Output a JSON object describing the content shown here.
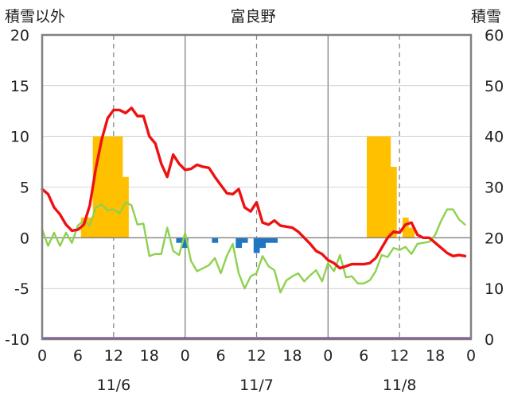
{
  "chart_data": {
    "type": "bar+line",
    "title": "富良野",
    "y_left_label": "積雪以外",
    "y_right_label": "積雪",
    "y_left_range": [
      -10,
      20
    ],
    "y_right_range": [
      0,
      60
    ],
    "y_left_ticks": [
      "20",
      "15",
      "10",
      "5",
      "0",
      "-5",
      "-10"
    ],
    "y_right_ticks": [
      "60",
      "50",
      "40",
      "30",
      "20",
      "10",
      "0"
    ],
    "x_hour_ticks": [
      "0",
      "6",
      "12",
      "18",
      "0",
      "6",
      "12",
      "18",
      "0",
      "6",
      "12",
      "18",
      "0"
    ],
    "x_date_labels": [
      "11/6",
      "11/7",
      "11/8"
    ],
    "grid": "dashed vertical at 12h, solid at midnight",
    "x_unit_hours_total": 72,
    "colors": {
      "red_series": "#ee1111",
      "green_series": "#8fd14f",
      "orange_bars": "#ffc000",
      "blue_bars": "#1f77c4",
      "purple_baseline": "#7030a0",
      "grid": "#808080"
    },
    "orange_bars": {
      "name": "",
      "axis": "left",
      "x_hours": [
        7,
        8,
        9,
        10,
        11,
        12,
        13,
        14,
        55,
        56,
        57,
        58,
        59,
        60,
        61,
        62
      ],
      "values": [
        2,
        2,
        10,
        10,
        10,
        10,
        10,
        6,
        10,
        10,
        10,
        10,
        7,
        0,
        2,
        1
      ]
    },
    "blue_bars": {
      "name": "",
      "axis": "left",
      "x_hours": [
        23,
        24,
        29,
        33,
        34,
        36,
        37,
        38,
        39
      ],
      "values": [
        -0.5,
        -1,
        -0.5,
        -1,
        -0.5,
        -1.5,
        -1,
        -0.5,
        -0.5
      ]
    },
    "red_line": {
      "name": "",
      "axis": "left",
      "x_hours": [
        0,
        1,
        2,
        3,
        4,
        5,
        6,
        7,
        8,
        9,
        10,
        11,
        12,
        13,
        14,
        15,
        16,
        17,
        18,
        19,
        20,
        21,
        22,
        23,
        24,
        25,
        26,
        27,
        28,
        29,
        30,
        31,
        32,
        33,
        34,
        35,
        36,
        37,
        38,
        39,
        40,
        41,
        42,
        43,
        44,
        45,
        46,
        47,
        48,
        49,
        50,
        51,
        52,
        53,
        54,
        55,
        56,
        57,
        58,
        59,
        60,
        61,
        62,
        63,
        64,
        65,
        66,
        67,
        68,
        69,
        70,
        71
      ],
      "values": [
        4.8,
        4.3,
        3,
        2.3,
        1.3,
        0.7,
        0.8,
        1.3,
        3.2,
        6.8,
        9.7,
        11.8,
        12.6,
        12.6,
        12.3,
        12.8,
        12,
        12,
        10,
        9.3,
        7.3,
        6,
        8.2,
        7.3,
        6.7,
        6.8,
        7.2,
        7,
        6.9,
        6,
        5.2,
        4.4,
        4.3,
        4.8,
        3,
        2.6,
        3.5,
        1.5,
        1.3,
        1.7,
        1.2,
        1.1,
        1,
        0.6,
        0,
        -0.6,
        -1.3,
        -1.6,
        -2.2,
        -2.5,
        -3,
        -2.8,
        -2.6,
        -2.6,
        -2.6,
        -2.5,
        -2,
        -1,
        0,
        0.6,
        0.5,
        1.3,
        1.5,
        0.3,
        0,
        0,
        -0.5,
        -1,
        -1.5,
        -1.8,
        -1.7,
        -1.8
      ]
    },
    "green_line": {
      "name": "",
      "axis": "left",
      "x_hours": [
        0,
        1,
        2,
        3,
        4,
        5,
        6,
        7,
        8,
        9,
        10,
        11,
        12,
        13,
        14,
        15,
        16,
        17,
        18,
        19,
        20,
        21,
        22,
        23,
        24,
        25,
        26,
        27,
        28,
        29,
        30,
        31,
        32,
        33,
        34,
        35,
        36,
        37,
        38,
        39,
        40,
        41,
        42,
        43,
        44,
        45,
        46,
        47,
        48,
        49,
        50,
        51,
        52,
        53,
        54,
        55,
        56,
        57,
        58,
        59,
        60,
        61,
        62,
        63,
        64,
        65,
        66,
        67,
        68,
        69,
        70,
        71
      ],
      "values": [
        0.8,
        -0.8,
        0.5,
        -0.8,
        0.5,
        -0.5,
        1.2,
        1.7,
        1.2,
        3,
        3.3,
        2.7,
        2.8,
        2.4,
        3.5,
        3.2,
        1.3,
        1.4,
        -1.8,
        -1.6,
        -1.6,
        1,
        -1.3,
        -1.7,
        0.5,
        -2.3,
        -3.3,
        -3,
        -2.7,
        -2,
        -3.5,
        -1.8,
        -0.6,
        -3.5,
        -5,
        -3.8,
        -3.5,
        -1.8,
        -2.8,
        -3.2,
        -5.4,
        -4.2,
        -3.8,
        -3.5,
        -4.3,
        -3.7,
        -3.2,
        -4.3,
        -2.5,
        -3.3,
        -1.7,
        -3.9,
        -3.8,
        -4.5,
        -4.5,
        -4.2,
        -3.3,
        -1.7,
        -1.9,
        -1,
        -1.2,
        -0.9,
        -1.6,
        -0.6,
        -0.5,
        -0.4,
        0.3,
        1.7,
        2.8,
        2.8,
        1.8,
        1.3
      ]
    },
    "purple_line": {
      "name": "",
      "axis": "right",
      "value": 0
    }
  }
}
